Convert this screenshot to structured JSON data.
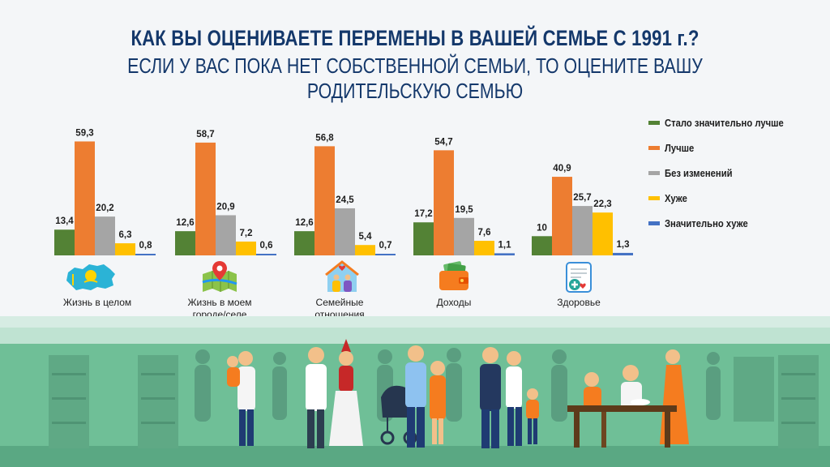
{
  "title": "КАК ВЫ ОЦЕНИВАЕТЕ ПЕРЕМЕНЫ В ВАШЕЙ СЕМЬЕ С 1991 г.?",
  "subtitle": "ЕСЛИ У ВАС ПОКА НЕТ СОБСТВЕННОЙ СЕМЬИ, ТО ОЦЕНИТЕ ВАШУ РОДИТЕЛЬСКУЮ СЕМЬЮ",
  "chart_data": {
    "type": "bar",
    "title": "КАК ВЫ ОЦЕНИВАЕТЕ ПЕРЕМЕНЫ В ВАШЕЙ СЕМЬЕ С 1991 г.?",
    "subtitle": "ЕСЛИ У ВАС ПОКА НЕТ СОБСТВЕННОЙ СЕМЬИ, ТО ОЦЕНИТЕ ВАШУ РОДИТЕЛЬСКУЮ СЕМЬЮ",
    "categories": [
      "Жизнь в целом",
      "Жизнь в моем городе/селе",
      "Семейные отношения",
      "Доходы",
      "Здоровье"
    ],
    "ylim": [
      0,
      60
    ],
    "legend_position": "right",
    "series": [
      {
        "name": "Стало значительно лучше",
        "color": "#538235",
        "values": [
          13.4,
          12.6,
          12.6,
          17.2,
          10
        ],
        "labels": [
          "13,4",
          "12,6",
          "12,6",
          "17,2",
          "10"
        ]
      },
      {
        "name": "Лучше",
        "color": "#ed7d31",
        "values": [
          59.3,
          58.7,
          56.8,
          54.7,
          40.9
        ],
        "labels": [
          "59,3",
          "58,7",
          "56,8",
          "54,7",
          "40,9"
        ]
      },
      {
        "name": "Без изменений",
        "color": "#a5a5a5",
        "values": [
          20.2,
          20.9,
          24.5,
          19.5,
          25.7
        ],
        "labels": [
          "20,2",
          "20,9",
          "24,5",
          "19,5",
          "25,7"
        ]
      },
      {
        "name": "Хуже",
        "color": "#ffc000",
        "values": [
          6.3,
          7.2,
          5.4,
          7.6,
          22.3
        ],
        "labels": [
          "6,3",
          "7,2",
          "5,4",
          "7,6",
          "22,3"
        ]
      },
      {
        "name": "Значительно хуже",
        "color": "#4472c4",
        "values": [
          0.8,
          0.6,
          0.7,
          1.1,
          1.3
        ],
        "labels": [
          "0,8",
          "0,6",
          "0,7",
          "1,1",
          "1,3"
        ]
      }
    ]
  },
  "category_labels": [
    {
      "line1": "Жизнь в целом",
      "line2": ""
    },
    {
      "line1": "Жизнь в моем",
      "line2": "городе/селе"
    },
    {
      "line1": "Семейные",
      "line2": "отношения"
    },
    {
      "line1": "Доходы",
      "line2": ""
    },
    {
      "line1": "Здоровье",
      "line2": ""
    }
  ],
  "icons": [
    "kazakhstan-map-icon",
    "map-pin-icon",
    "family-house-icon",
    "wallet-icon",
    "medical-record-icon"
  ]
}
